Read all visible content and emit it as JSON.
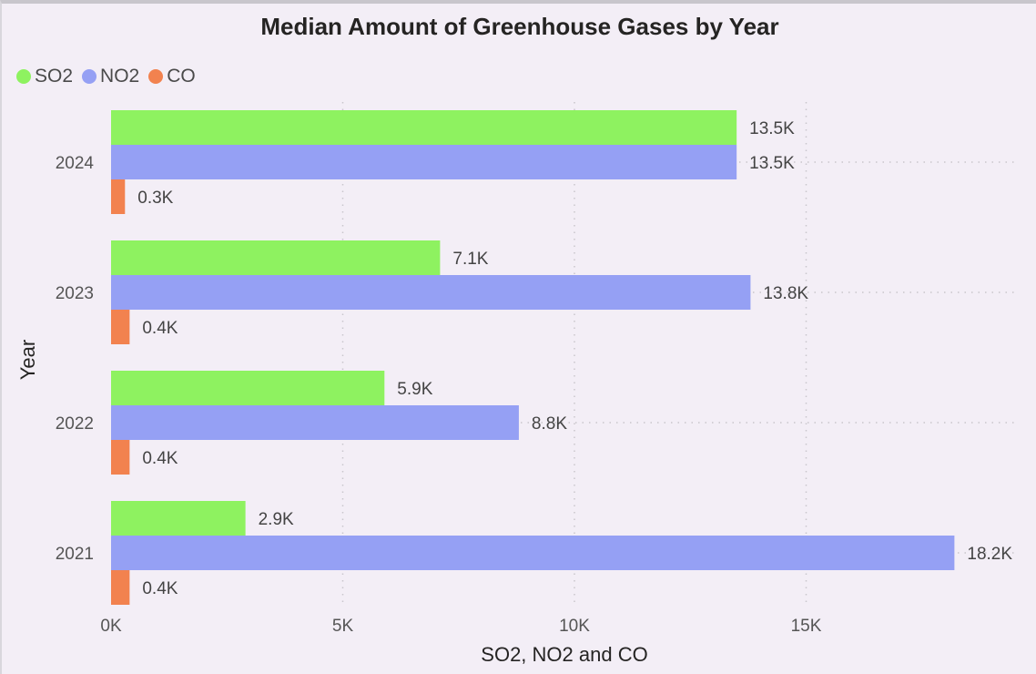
{
  "colors": {
    "so2": "#8ef260",
    "no2": "#95a0f4",
    "co": "#f2824f"
  },
  "chart_data": {
    "type": "bar",
    "orientation": "horizontal",
    "title": "Median Amount of Greenhouse Gases by Year",
    "xlabel": "SO2, NO2 and CO",
    "ylabel": "Year",
    "categories": [
      "2024",
      "2023",
      "2022",
      "2021"
    ],
    "series": [
      {
        "name": "SO2",
        "key": "so2",
        "values": [
          13500,
          7100,
          5900,
          2900
        ],
        "labels": [
          "13.5K",
          "7.1K",
          "5.9K",
          "2.9K"
        ]
      },
      {
        "name": "NO2",
        "key": "no2",
        "values": [
          13500,
          13800,
          8800,
          18200
        ],
        "labels": [
          "13.5K",
          "13.8K",
          "8.8K",
          "18.2K"
        ]
      },
      {
        "name": "CO",
        "key": "co",
        "values": [
          300,
          400,
          400,
          400
        ],
        "labels": [
          "0.3K",
          "0.4K",
          "0.4K",
          "0.4K"
        ]
      }
    ],
    "xticks": [
      0,
      5000,
      10000,
      15000
    ],
    "xtick_labels": [
      "0K",
      "5K",
      "10K",
      "15K"
    ],
    "xlim": [
      0,
      18200
    ],
    "grid": true,
    "legend_position": "top-left"
  }
}
